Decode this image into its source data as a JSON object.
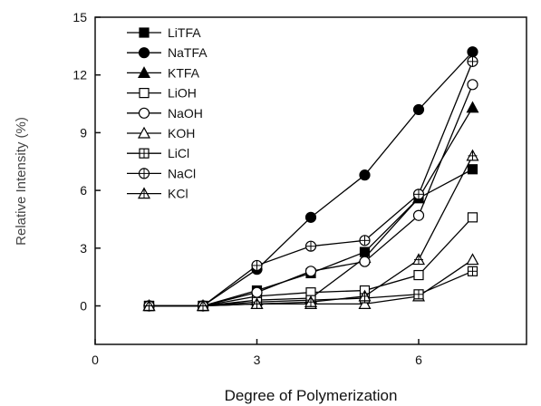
{
  "chart_data": {
    "type": "line",
    "title": "",
    "xlabel": "Degree of Polymerization",
    "ylabel": "Relative Intensity (%)",
    "xlim": [
      0,
      8
    ],
    "ylim": [
      -2,
      15
    ],
    "xticks": [
      0,
      3,
      6
    ],
    "yticks": [
      0,
      3,
      6,
      9,
      12,
      15
    ],
    "grid": false,
    "legend_position": "top-left",
    "series": [
      {
        "name": "LiTFA",
        "marker": "square-filled",
        "x": [
          1,
          2,
          3,
          4,
          5,
          6,
          7
        ],
        "y": [
          0,
          0,
          0.8,
          1.7,
          2.8,
          5.6,
          7.1
        ]
      },
      {
        "name": "NaTFA",
        "marker": "circle-filled",
        "x": [
          1,
          2,
          3,
          4,
          5,
          6,
          7
        ],
        "y": [
          0,
          0,
          1.9,
          4.6,
          6.8,
          10.2,
          13.2
        ]
      },
      {
        "name": "KTFA",
        "marker": "triangle-filled",
        "x": [
          1,
          2,
          3,
          4,
          5,
          6,
          7
        ],
        "y": [
          0,
          0,
          0.3,
          0.4,
          2.5,
          5.6,
          10.3
        ]
      },
      {
        "name": "LiOH",
        "marker": "square-open",
        "x": [
          1,
          2,
          3,
          4,
          5,
          6,
          7
        ],
        "y": [
          0,
          0,
          0.5,
          0.7,
          0.8,
          1.6,
          4.6
        ]
      },
      {
        "name": "NaOH",
        "marker": "circle-open",
        "x": [
          1,
          2,
          3,
          4,
          5,
          6,
          7
        ],
        "y": [
          0,
          0,
          0.7,
          1.8,
          2.3,
          4.7,
          11.5
        ]
      },
      {
        "name": "KOH",
        "marker": "triangle-open",
        "x": [
          1,
          2,
          3,
          4,
          5,
          6,
          7
        ],
        "y": [
          0,
          0,
          0.1,
          0.1,
          0.1,
          0.5,
          2.4
        ]
      },
      {
        "name": "LiCl",
        "marker": "square-plus",
        "x": [
          1,
          2,
          3,
          4,
          5,
          6,
          7
        ],
        "y": [
          0,
          0,
          0.2,
          0.3,
          0.4,
          0.6,
          1.8
        ]
      },
      {
        "name": "NaCl",
        "marker": "circle-plus",
        "x": [
          1,
          2,
          3,
          4,
          5,
          6,
          7
        ],
        "y": [
          0,
          0,
          2.1,
          3.1,
          3.4,
          5.8,
          12.7
        ]
      },
      {
        "name": "KCl",
        "marker": "triangle-plus",
        "x": [
          1,
          2,
          3,
          4,
          5,
          6,
          7
        ],
        "y": [
          0,
          0,
          0.1,
          0.2,
          0.5,
          2.4,
          7.8
        ]
      }
    ]
  }
}
